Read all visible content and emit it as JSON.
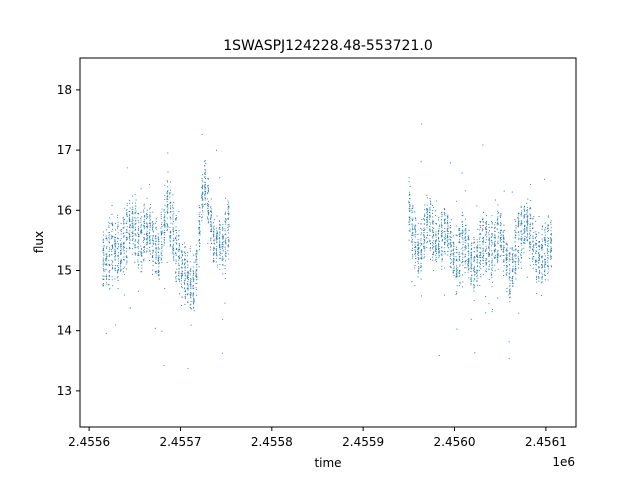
{
  "chart_data": {
    "type": "scatter",
    "title": "1SWASPJ124228.48-553721.0",
    "xlabel": "time",
    "ylabel": "flux",
    "x_offset_label": "1e6",
    "xlim": [
      2455590,
      2456133
    ],
    "ylim": [
      12.4,
      18.53
    ],
    "xticks": [
      2455600,
      2455700,
      2455800,
      2455900,
      2456000,
      2456100
    ],
    "xtick_labels": [
      "2.4556",
      "2.4557",
      "2.4558",
      "2.4559",
      "2.4560",
      "2.4561"
    ],
    "yticks": [
      13,
      14,
      15,
      16,
      17,
      18
    ],
    "ytick_labels": [
      "13",
      "14",
      "15",
      "16",
      "17",
      "18"
    ],
    "grid": false,
    "marker_color": "#1f77b4",
    "segments": [
      {
        "x_start": 2455615,
        "x_end": 2455755,
        "y_center": 15.4,
        "y_spread": 0.6
      },
      {
        "x_start": 2455950,
        "x_end": 2456108,
        "y_center": 15.4,
        "y_spread": 0.55
      }
    ],
    "series": [
      {
        "x": [
          2455615,
          2455625,
          2455635,
          2455645,
          2455655,
          2455665,
          2455675,
          2455685,
          2455695,
          2455705,
          2455715,
          2455725,
          2455735,
          2455745,
          2455755,
          2455950,
          2455960,
          2455970,
          2455980,
          2455990,
          2456000,
          2456010,
          2456020,
          2456030,
          2456040,
          2456050,
          2456060,
          2456070,
          2456080,
          2456090,
          2456100,
          2456108
        ],
        "y": [
          15.1,
          15.4,
          15.3,
          15.8,
          15.5,
          15.7,
          15.2,
          16.1,
          15.3,
          14.9,
          14.7,
          16.6,
          15.5,
          15.4,
          15.9,
          16.0,
          15.2,
          15.9,
          15.4,
          15.7,
          15.1,
          15.5,
          15.0,
          15.5,
          15.3,
          15.6,
          14.9,
          15.6,
          15.8,
          15.2,
          15.3,
          15.5
        ]
      }
    ]
  }
}
